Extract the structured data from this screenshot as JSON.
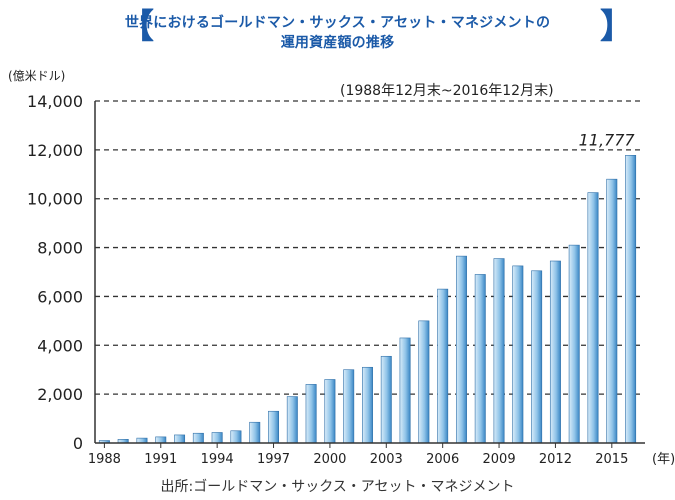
{
  "header": {
    "title_line1": "世界におけるゴールドマン・サックス・アセット・マネジメントの",
    "title_line2": "運用資産額の推移",
    "bracket_left": "【",
    "bracket_right": "】"
  },
  "unit_label": "(億米ドル)",
  "period_label": "(1988年12月末~2016年12月末)",
  "source_label": "出所:ゴールドマン・サックス・アセット・マネジメント",
  "colors": {
    "title": "#1b5aa8",
    "bar_light": "#d9ecf9",
    "bar_mid": "#8fc3e8",
    "bar_dark": "#3a86c4",
    "grid": "#333333"
  },
  "chart_data": {
    "type": "bar",
    "title": "世界におけるゴールドマン・サックス・アセット・マネジメントの運用資産額の推移",
    "ylabel": "(億米ドル)",
    "xlabel": "(年)",
    "ylim": [
      0,
      14000
    ],
    "grid": true,
    "yticks": [
      "0",
      "2,000",
      "4,000",
      "6,000",
      "8,000",
      "10,000",
      "12,000",
      "14,000"
    ],
    "xtick_labels": [
      "1988",
      "1991",
      "1994",
      "1997",
      "2000",
      "2003",
      "2006",
      "2009",
      "2012",
      "2015"
    ],
    "x_unit": "(年)",
    "categories": [
      "1988",
      "1989",
      "1990",
      "1991",
      "1992",
      "1993",
      "1994",
      "1995",
      "1996",
      "1997",
      "1998",
      "1999",
      "2000",
      "2001",
      "2002",
      "2003",
      "2004",
      "2005",
      "2006",
      "2007",
      "2008",
      "2009",
      "2010",
      "2011",
      "2012",
      "2013",
      "2014",
      "2015",
      "2016"
    ],
    "values": [
      100,
      150,
      200,
      250,
      330,
      400,
      430,
      500,
      850,
      1300,
      1900,
      2400,
      2600,
      3000,
      3100,
      3550,
      4300,
      5000,
      6300,
      7650,
      6900,
      7550,
      7250,
      7050,
      7450,
      8100,
      10250,
      10800,
      11777
    ],
    "annotations": [
      {
        "category": "2016",
        "text": "11,777"
      }
    ]
  }
}
